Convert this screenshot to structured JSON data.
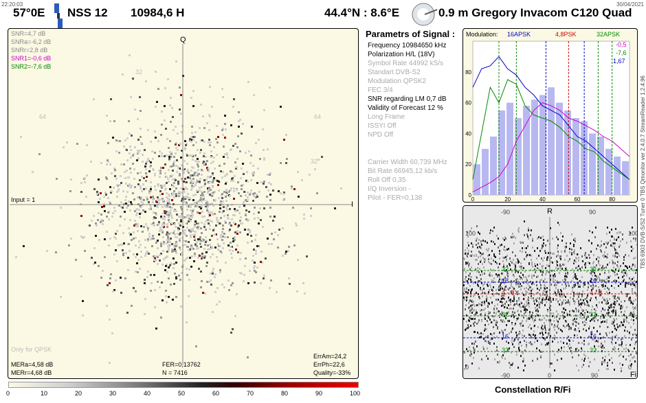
{
  "header": {
    "time": "22:20:03",
    "date": "30/04/2021",
    "orbital": "57°0E",
    "satellite": "NSS 12",
    "frequency_pol": "10984,6  H",
    "location": "44.4°N : 8.6°E",
    "dish": "0.9 m Gregory  Invacom C120 Quad"
  },
  "constellation": {
    "axis_q": "Q",
    "axis_i": "I",
    "input": "Input = 1",
    "snr_lines": [
      {
        "text": "SNR=4,7 dB",
        "color": "#888888"
      },
      {
        "text": "SNRa=-6,2 dB",
        "color": "#888888"
      },
      {
        "text": "SNRr=2,8 dB",
        "color": "#888888"
      },
      {
        "text": "SNR1=-0,6 dB",
        "color": "#cc00cc"
      },
      {
        "text": "SNR2=-7,6 dB",
        "color": "#008800"
      }
    ],
    "tick_labels": [
      "64",
      "32",
      "32",
      "64"
    ],
    "only_qpsk": "Only for QPSK",
    "mera": "MERa=4,58 dB",
    "merr": "MERr=4,68 dB",
    "fer": "FER=0,13762",
    "n": "N = 7416",
    "erram": "ErrAm=24,2",
    "errph": "ErrPh=22,6",
    "quality": "Quality=-33%"
  },
  "params": {
    "title": "Parametrs of Signal :",
    "rows": [
      {
        "text": "Frequency  10984650 kHz",
        "active": true
      },
      {
        "text": "Polarization  H/L (18V)",
        "active": true
      },
      {
        "text": "Symbol Rate  44992 kS/s",
        "active": false
      },
      {
        "text": "Standart  DVB-S2",
        "active": false
      },
      {
        "text": "Modulation  QPSK2",
        "active": false
      },
      {
        "text": "FEC  3/4",
        "active": false
      },
      {
        "text": "SNR regarding LM  0,7 dB",
        "active": true
      },
      {
        "text": "Validity of Forecast  12 %",
        "active": true
      },
      {
        "text": "Long  Frame",
        "active": false
      },
      {
        "text": "ISSYI  Off",
        "active": false
      },
      {
        "text": "NPD  Off",
        "active": false
      }
    ],
    "rows2": [
      {
        "text": "Carrier Width  60,739 MHz"
      },
      {
        "text": "Bit Rate  66945,12 kb/s"
      },
      {
        "text": "Roll Off  0,35"
      },
      {
        "text": "I/Q Inversion    -"
      },
      {
        "text": "Pilot    -       FER=0,138"
      }
    ]
  },
  "modulation_chart": {
    "label": "Modulation:",
    "mod1": "16APSK",
    "mod2": "4,8PSK",
    "mod3": "32APSK",
    "val1": "-0,5",
    "val2": "-7,6",
    "val3": "1,67",
    "colors": {
      "blue": "#0000cc",
      "red": "#cc0000",
      "green": "#008800",
      "magenta": "#cc00cc"
    }
  },
  "chart_data": [
    {
      "type": "line",
      "title": "Modulation",
      "x": [
        0,
        5,
        10,
        15,
        20,
        25,
        30,
        35,
        40,
        45,
        50,
        55,
        60,
        65,
        70,
        75,
        80,
        85,
        90
      ],
      "xlim": [
        0,
        90
      ],
      "ylim": [
        0,
        100
      ],
      "xticks": [
        "0",
        "20",
        "40",
        "60",
        "80"
      ],
      "yticks": [
        "0",
        "20",
        "40",
        "60",
        "80"
      ],
      "bars": [
        20,
        30,
        38,
        55,
        60,
        50,
        58,
        62,
        65,
        70,
        60,
        55,
        50,
        48,
        40,
        38,
        30,
        25,
        22
      ],
      "series": [
        {
          "name": "blue",
          "color": "#0000cc",
          "values": [
            70,
            82,
            84,
            90,
            82,
            78,
            70,
            65,
            58,
            55,
            52,
            45,
            38,
            35,
            30,
            25,
            20,
            15,
            10
          ]
        },
        {
          "name": "green",
          "color": "#008800",
          "values": [
            10,
            40,
            70,
            60,
            75,
            72,
            58,
            52,
            50,
            48,
            44,
            38,
            35,
            30,
            28,
            22,
            18,
            14,
            10
          ]
        },
        {
          "name": "magenta",
          "color": "#cc00cc",
          "values": [
            2,
            5,
            8,
            12,
            20,
            35,
            45,
            55,
            60,
            58,
            55,
            50,
            48,
            45,
            42,
            38,
            35,
            30,
            25
          ]
        }
      ],
      "markers": [
        {
          "x": 15,
          "color": "#008800"
        },
        {
          "x": 25,
          "color": "#008800"
        },
        {
          "x": 42,
          "color": "#0000cc"
        },
        {
          "x": 55,
          "color": "#cc0000"
        },
        {
          "x": 64,
          "color": "#0000cc"
        },
        {
          "x": 72,
          "color": "#008800"
        },
        {
          "x": 80,
          "color": "#008800"
        }
      ]
    }
  ],
  "rfi": {
    "axis_r": "R",
    "axis_fi": "Fi",
    "title": "Constellation  R/Fi",
    "top_ticks": [
      "-90",
      "90"
    ],
    "bottom_ticks": [
      "-90",
      "0",
      "90"
    ],
    "left_ticks": [
      "100",
      "0"
    ],
    "right_ticks": [
      "100",
      "0"
    ],
    "lines": [
      {
        "label": "32",
        "color": "#008800"
      },
      {
        "label": "16",
        "color": "#0000cc"
      },
      {
        "label": "4 - 8",
        "color": "#cc0000"
      },
      {
        "label": "32",
        "color": "#008800"
      },
      {
        "label": "16",
        "color": "#0000cc"
      },
      {
        "label": "32",
        "color": "#008800"
      }
    ]
  },
  "scale": {
    "ticks": [
      "0",
      "10",
      "20",
      "30",
      "40",
      "50",
      "60",
      "70",
      "80",
      "90",
      "100"
    ]
  },
  "vertical_text": "TBS 6903 DVB-S/S2 Tuner 0     TBS Qmonitor ver 2.4.0.7     StreamReader 1.2.4.96"
}
